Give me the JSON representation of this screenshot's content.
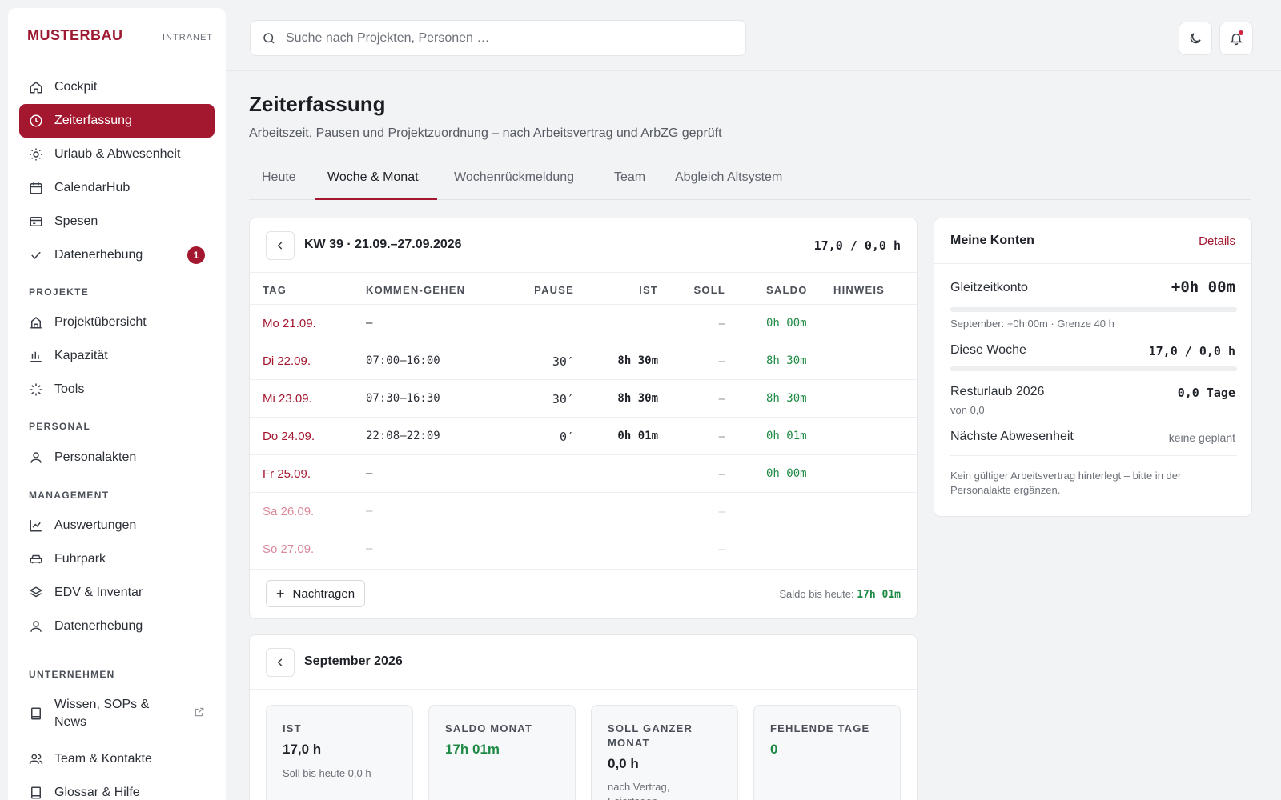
{
  "brand": {
    "name": "MUSTERBAU",
    "sub": "INTRANET"
  },
  "search": {
    "placeholder": "Suche nach Projekten, Personen …"
  },
  "sidebar": {
    "main": [
      {
        "label": "Cockpit",
        "icon": "home-icon"
      },
      {
        "label": "Zeiterfassung",
        "icon": "clock-icon",
        "active": true
      },
      {
        "label": "Urlaub & Abwesenheit",
        "icon": "sun-icon"
      },
      {
        "label": "CalendarHub",
        "icon": "calendar-icon"
      },
      {
        "label": "Spesen",
        "icon": "card-icon"
      },
      {
        "label": "Datenerhebung",
        "icon": "check-icon",
        "badge": "1"
      }
    ],
    "sections": {
      "projekte": "PROJEKTE",
      "personal": "PERSONAL",
      "management": "MANAGEMENT",
      "unternehmen": "UNTERNEHMEN"
    },
    "projekte": [
      {
        "label": "Projektübersicht",
        "icon": "building-icon"
      },
      {
        "label": "Kapazität",
        "icon": "bar-chart-icon"
      },
      {
        "label": "Tools",
        "icon": "loader-icon"
      }
    ],
    "personal": [
      {
        "label": "Personalakten",
        "icon": "user-icon"
      }
    ],
    "management": [
      {
        "label": "Auswertungen",
        "icon": "line-chart-icon"
      },
      {
        "label": "Fuhrpark",
        "icon": "car-icon"
      },
      {
        "label": "EDV & Inventar",
        "icon": "layers-icon"
      },
      {
        "label": "Datenerhebung",
        "icon": "user-icon"
      }
    ],
    "unternehmen": [
      {
        "label": "Wissen, SOPs & News",
        "icon": "book-icon",
        "external": true
      },
      {
        "label": "Team & Kontakte",
        "icon": "users-icon"
      },
      {
        "label": "Glossar & Hilfe",
        "icon": "book-icon"
      }
    ]
  },
  "page": {
    "title": "Zeiterfassung",
    "subtitle": "Arbeitszeit, Pausen und Projektzuordnung – nach Arbeitsvertrag und ArbZG geprüft"
  },
  "tabs": [
    "Heute",
    "Woche & Monat",
    "Wochenrückmeldung",
    "Team",
    "Abgleich Altsystem"
  ],
  "week": {
    "title": "KW 39 · 21.09.–27.09.2026",
    "total": "17,0 / 0,0 h",
    "headers": [
      "TAG",
      "KOMMEN-GEHEN",
      "PAUSE",
      "IST",
      "SOLL",
      "SALDO",
      "HINWEIS"
    ],
    "rows": [
      {
        "day": "Mo 21.09.",
        "kg": "–",
        "pause": "",
        "ist": "",
        "soll": "–",
        "saldo": "0h 00m",
        "weekend": false
      },
      {
        "day": "Di 22.09.",
        "kg": "07:00–16:00",
        "pause": "30′",
        "ist": "8h 30m",
        "soll": "–",
        "saldo": "8h 30m",
        "weekend": false
      },
      {
        "day": "Mi 23.09.",
        "kg": "07:30–16:30",
        "pause": "30′",
        "ist": "8h 30m",
        "soll": "–",
        "saldo": "8h 30m",
        "weekend": false
      },
      {
        "day": "Do 24.09.",
        "kg": "22:08–22:09",
        "pause": "0′",
        "ist": "0h 01m",
        "soll": "–",
        "saldo": "0h 01m",
        "weekend": false
      },
      {
        "day": "Fr 25.09.",
        "kg": "–",
        "pause": "",
        "ist": "",
        "soll": "–",
        "saldo": "0h 00m",
        "weekend": false
      },
      {
        "day": "Sa 26.09.",
        "kg": "–",
        "pause": "",
        "ist": "",
        "soll": "–",
        "saldo": "",
        "weekend": true
      },
      {
        "day": "So 27.09.",
        "kg": "–",
        "pause": "",
        "ist": "",
        "soll": "–",
        "saldo": "",
        "weekend": true
      }
    ],
    "add_label": "Nachtragen",
    "saldo_label": "Saldo bis heute:",
    "saldo_value": "17h 01m"
  },
  "konten": {
    "title": "Meine Konten",
    "details": "Details",
    "gleitzeit_label": "Gleitzeitkonto",
    "gleitzeit_value": "+0h 00m",
    "gleitzeit_note": "September: +0h 00m · Grenze 40 h",
    "woche_label": "Diese Woche",
    "woche_value": "17,0 / 0,0 h",
    "urlaub_label": "Resturlaub 2026",
    "urlaub_value": "0,0 Tage",
    "urlaub_note": "von 0,0",
    "abwesenheit_label": "Nächste Abwesenheit",
    "abwesenheit_value": "keine geplant",
    "warning": "Kein gültiger Arbeitsvertrag hinterlegt – bitte in der Personalakte ergänzen."
  },
  "month": {
    "title": "September 2026",
    "stats": [
      {
        "label": "IST",
        "value": "17,0 h",
        "note": "Soll bis heute 0,0 h",
        "green": false
      },
      {
        "label": "SALDO MONAT",
        "value": "17h 01m",
        "note": "",
        "green": true
      },
      {
        "label": "SOLL GANZER MONAT",
        "value": "0,0 h",
        "note": "nach Vertrag, Feiertagen",
        "green": false
      },
      {
        "label": "FEHLENDE TAGE",
        "value": "0",
        "note": "",
        "green": true
      }
    ]
  }
}
